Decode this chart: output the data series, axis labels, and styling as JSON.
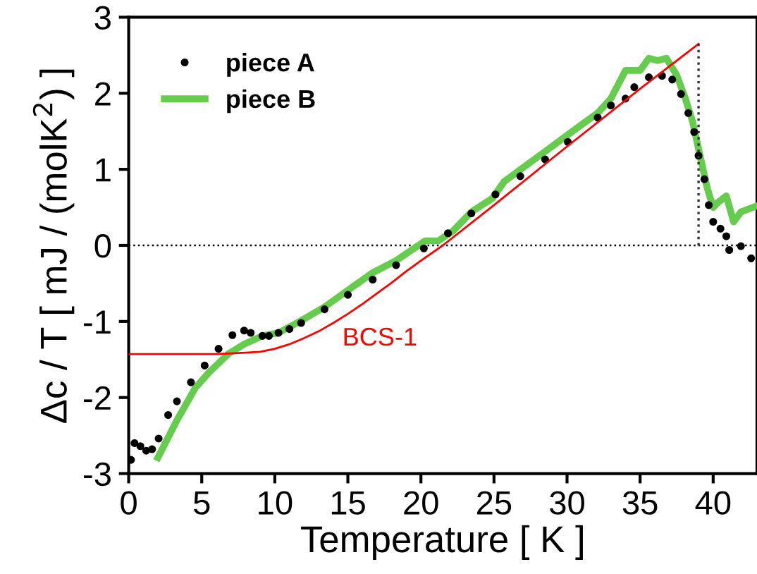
{
  "chart_data": {
    "type": "line",
    "xlabel": "Temperature [ K ]",
    "ylabel": "Δc / T [ mJ / (molK$^{2}$) ]",
    "xlim": [
      0,
      43
    ],
    "ylim": [
      -3,
      3
    ],
    "xticks": [
      0,
      5,
      10,
      15,
      20,
      25,
      30,
      35,
      40
    ],
    "yticks": [
      -3,
      -2,
      -1,
      0,
      1,
      2,
      3
    ],
    "grid": false,
    "legend": "top left",
    "series": [
      {
        "name": "piece A",
        "type": "scatter",
        "marker": "circle",
        "color": "#000000",
        "x": [
          0.16,
          0.4,
          0.8,
          1.2,
          1.6,
          2.05,
          2.7,
          3.3,
          4.26,
          5.2,
          6.15,
          7.1,
          7.9,
          8.35,
          9.15,
          9.6,
          10.25,
          11.0,
          11.8,
          13.4,
          15.0,
          16.7,
          18.3,
          20.2,
          21.85,
          23.45,
          25.1,
          26.8,
          28.5,
          30.05,
          32.1,
          33.0,
          34.0,
          34.6,
          35.6,
          36.5,
          37.2,
          37.8,
          38.3,
          38.7,
          39.0,
          39.4,
          39.7,
          40.0,
          40.5,
          40.9,
          41.1,
          41.9,
          42.6
        ],
        "values": [
          -2.82,
          -2.6,
          -2.64,
          -2.7,
          -2.68,
          -2.54,
          -2.23,
          -2.05,
          -1.8,
          -1.58,
          -1.36,
          -1.18,
          -1.12,
          -1.15,
          -1.19,
          -1.19,
          -1.15,
          -1.1,
          -1.02,
          -0.84,
          -0.65,
          -0.45,
          -0.26,
          -0.04,
          0.16,
          0.42,
          0.67,
          0.91,
          1.13,
          1.36,
          1.68,
          1.84,
          1.93,
          2.08,
          2.21,
          2.23,
          2.18,
          1.99,
          1.74,
          1.49,
          1.18,
          0.87,
          0.53,
          0.31,
          0.22,
          0.12,
          -0.06,
          -0.01,
          -0.17
        ]
      },
      {
        "name": "piece B",
        "line_style": "solid",
        "color": "#66cc4d",
        "x": [
          2.0,
          3.3,
          4.57,
          5.5,
          6.8,
          7.9,
          9.15,
          10.25,
          11.8,
          13.4,
          15.0,
          16.7,
          18.3,
          20.3,
          21.2,
          22.2,
          23.45,
          24.9,
          25.7,
          27.9,
          30.8,
          32.1,
          33.0,
          34.0,
          35.0,
          35.6,
          36.2,
          36.8,
          37.5,
          38.1,
          38.6,
          39.1,
          39.6,
          40.0,
          40.3,
          40.9,
          41.4,
          41.9,
          43.0
        ],
        "values": [
          -2.79,
          -2.3,
          -1.87,
          -1.67,
          -1.43,
          -1.3,
          -1.19,
          -1.15,
          -0.99,
          -0.81,
          -0.59,
          -0.36,
          -0.2,
          0.06,
          0.06,
          0.19,
          0.44,
          0.62,
          0.84,
          1.15,
          1.56,
          1.74,
          1.93,
          2.3,
          2.3,
          2.46,
          2.43,
          2.46,
          2.24,
          1.93,
          1.62,
          1.18,
          0.75,
          0.5,
          0.56,
          0.65,
          0.31,
          0.44,
          0.52
        ]
      },
      {
        "line_style": "solid",
        "color": "#ff0000",
        "x": [
          0,
          6,
          7,
          8,
          9,
          10,
          11,
          12,
          13,
          14,
          15,
          16,
          17,
          18,
          19,
          20,
          21.5,
          25,
          30,
          35,
          39
        ],
        "values": [
          -1.43,
          -1.43,
          -1.42,
          -1.41,
          -1.4,
          -1.36,
          -1.3,
          -1.22,
          -1.13,
          -1.02,
          -0.9,
          -0.77,
          -0.63,
          -0.49,
          -0.34,
          -0.2,
          0.0,
          0.53,
          1.3,
          2.06,
          2.65
        ]
      },
      {
        "line_style": "dotted",
        "color": "#333333",
        "x": [
          39,
          39
        ],
        "values": [
          0,
          2.65
        ]
      }
    ],
    "ref_lines": [
      {
        "axis": "y",
        "value": 0,
        "color": "#000000",
        "line_style": "dotted"
      }
    ],
    "annotations": [
      "BCS-1"
    ]
  }
}
